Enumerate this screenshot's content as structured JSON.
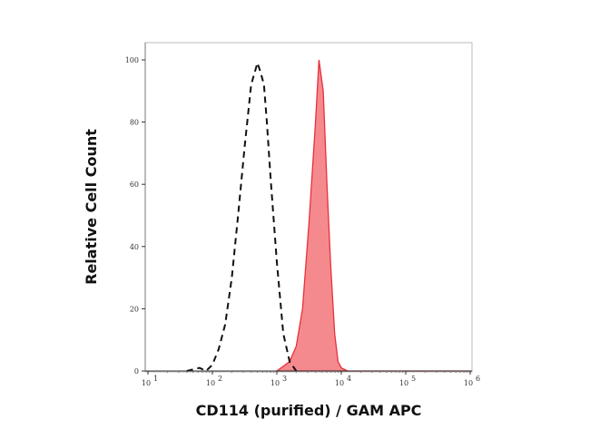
{
  "chart_data": {
    "type": "area",
    "title": "",
    "xlabel": "CD114 (purified) / GAM APC",
    "ylabel": "Relative Cell Count",
    "x_scale": "log",
    "xlim": [
      10,
      1000000
    ],
    "ylim": [
      0,
      100
    ],
    "x_ticks": [
      {
        "value": 10,
        "base": "10",
        "exp": "1"
      },
      {
        "value": 100,
        "base": "10",
        "exp": "2"
      },
      {
        "value": 1000,
        "base": "10",
        "exp": "3"
      },
      {
        "value": 10000,
        "base": "10",
        "exp": "4"
      },
      {
        "value": 100000,
        "base": "10",
        "exp": "5"
      },
      {
        "value": 1000000,
        "base": "10",
        "exp": "6"
      }
    ],
    "y_ticks": [
      "0",
      "20",
      "40",
      "60",
      "80",
      "100"
    ],
    "grid": false,
    "series": [
      {
        "style": "dashed-outline",
        "color": "#111111",
        "x": [
          40,
          63,
          80,
          100,
          125,
          158,
          200,
          250,
          316,
          400,
          500,
          560,
          630,
          700,
          800,
          1000,
          1260,
          1580,
          2000
        ],
        "y": [
          0,
          1,
          0,
          2,
          7,
          15,
          30,
          50,
          72,
          92,
          99,
          96,
          92,
          80,
          62,
          35,
          12,
          3,
          0
        ]
      },
      {
        "style": "filled",
        "color": "#e8303a",
        "fill": "#f58a8e",
        "x": [
          1000,
          1580,
          2000,
          2500,
          3160,
          3980,
          4500,
          5250,
          6000,
          6800,
          7900,
          8900,
          10000,
          12600,
          1000000
        ],
        "y": [
          0,
          3,
          8,
          20,
          48,
          80,
          100,
          90,
          60,
          35,
          12,
          3,
          1,
          0,
          0
        ]
      }
    ]
  }
}
